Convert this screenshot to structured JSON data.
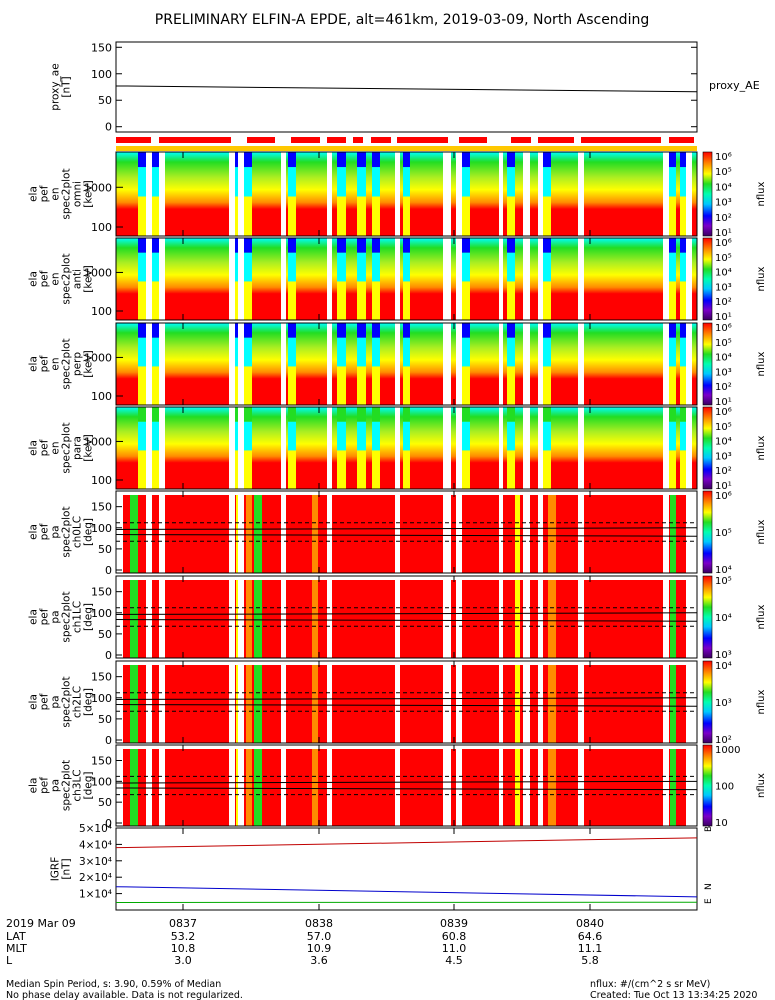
{
  "title": "PRELIMINARY ELFIN-A EPDE, alt=461km, 2019-03-09, North Ascending",
  "chart_data": [
    {
      "type": "line",
      "ylabel": [
        "proxy_ae",
        "[nT]"
      ],
      "yticks": [
        0,
        50,
        100,
        150
      ],
      "ylim": [
        -10,
        160
      ],
      "series": [
        {
          "name": "proxy_AE",
          "x": [
            0,
            1
          ],
          "values": [
            77,
            66
          ],
          "color": "#000000"
        }
      ]
    },
    {
      "type": "heatmap",
      "ylabel": [
        "ela",
        "pef",
        "en",
        "spec2plot",
        "omni",
        "[keV]"
      ],
      "yticks": [
        "100",
        "1000"
      ],
      "colorbar": {
        "title": "nflux",
        "ticks": [
          "10¹",
          "10²",
          "10³",
          "10⁴",
          "10⁵",
          "10⁶"
        ]
      }
    },
    {
      "type": "heatmap",
      "ylabel": [
        "ela",
        "pef",
        "en",
        "spec2plot",
        "anti",
        "[keV]"
      ],
      "yticks": [
        "100",
        "1000"
      ],
      "colorbar": {
        "title": "nflux",
        "ticks": [
          "10¹",
          "10²",
          "10³",
          "10⁴",
          "10⁵",
          "10⁶"
        ]
      }
    },
    {
      "type": "heatmap",
      "ylabel": [
        "ela",
        "pef",
        "en",
        "spec2plot",
        "perp",
        "[keV]"
      ],
      "yticks": [
        "100",
        "1000"
      ],
      "colorbar": {
        "title": "nflux",
        "ticks": [
          "10¹",
          "10²",
          "10³",
          "10⁴",
          "10⁵",
          "10⁶"
        ]
      }
    },
    {
      "type": "heatmap",
      "ylabel": [
        "ela",
        "pef",
        "en",
        "spec2plot",
        "para",
        "[keV]"
      ],
      "yticks": [
        "100",
        "1000"
      ],
      "colorbar": {
        "title": "nflux",
        "ticks": [
          "10¹",
          "10²",
          "10³",
          "10⁴",
          "10⁵",
          "10⁶"
        ]
      }
    },
    {
      "type": "heatmap",
      "ylabel": [
        "ela",
        "pef",
        "pa",
        "spec2plot",
        "ch0LC",
        "[deg]"
      ],
      "yticks": [
        "0",
        "50",
        "100",
        "150"
      ],
      "colorbar": {
        "title": "nflux",
        "ticks": [
          "10⁴",
          "10⁵",
          "10⁶"
        ]
      }
    },
    {
      "type": "heatmap",
      "ylabel": [
        "ela",
        "pef",
        "pa",
        "spec2plot",
        "ch1LC",
        "[deg]"
      ],
      "yticks": [
        "0",
        "50",
        "100",
        "150"
      ],
      "colorbar": {
        "title": "nflux",
        "ticks": [
          "10³",
          "10⁴",
          "10⁵"
        ]
      }
    },
    {
      "type": "heatmap",
      "ylabel": [
        "ela",
        "pef",
        "pa",
        "spec2plot",
        "ch2LC",
        "[deg]"
      ],
      "yticks": [
        "0",
        "50",
        "100",
        "150"
      ],
      "colorbar": {
        "title": "nflux",
        "ticks": [
          "10²",
          "10³",
          "10⁴"
        ]
      }
    },
    {
      "type": "heatmap",
      "ylabel": [
        "ela",
        "pef",
        "pa",
        "spec2plot",
        "ch3LC",
        "[deg]"
      ],
      "yticks": [
        "0",
        "50",
        "100",
        "150"
      ],
      "colorbar": {
        "title": "nflux",
        "ticks": [
          "10",
          "100",
          "1000"
        ]
      }
    },
    {
      "type": "line",
      "ylabel": [
        "IGRF",
        "[nT]"
      ],
      "yticks": [
        "1×10⁴",
        "2×10⁴",
        "3×10⁴",
        "4×10⁴",
        "5×10⁴"
      ],
      "ylim": [
        0,
        50000
      ],
      "series": [
        {
          "x": [
            0,
            1
          ],
          "values": [
            38000,
            44000
          ],
          "color": "#c00000"
        },
        {
          "x": [
            0,
            1
          ],
          "values": [
            14200,
            8000
          ],
          "color": "#0000cc"
        },
        {
          "x": [
            0,
            1
          ],
          "values": [
            4600,
            4700
          ],
          "color": "#00aa00"
        }
      ],
      "right_labels": [
        "B",
        "N",
        "E"
      ]
    }
  ],
  "xaxis": {
    "rows": [
      {
        "label": "2019 Mar 09",
        "values": [
          "0837",
          "0838",
          "0839",
          "0840"
        ]
      },
      {
        "label": "LAT",
        "values": [
          "53.2",
          "57.0",
          "60.8",
          "64.6"
        ]
      },
      {
        "label": "MLT",
        "values": [
          "10.8",
          "10.9",
          "11.0",
          "11.1"
        ]
      },
      {
        "label": "L",
        "values": [
          "3.0",
          "3.6",
          "4.5",
          "5.8"
        ]
      }
    ]
  },
  "footer": {
    "left1": "Median Spin Period, s: 3.90, 0.59% of Median",
    "left2": "No phase delay available. Data is not regularized.",
    "right1": "nflux: #/(cm^2 s sr MeV)",
    "right2": "Created: Tue Oct 13 13:34:25 2020"
  },
  "colors": {
    "red": "#ff0000",
    "orange": "#ff8c00",
    "yellow": "#ffff00",
    "green": "#22dd22",
    "cyan": "#00ffff",
    "blue": "#0000ff",
    "purple": "#660099"
  }
}
